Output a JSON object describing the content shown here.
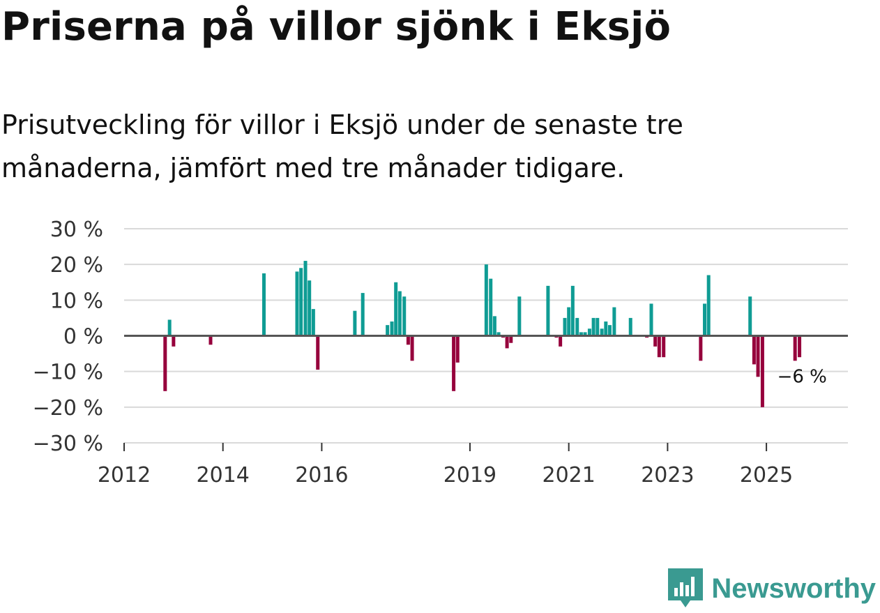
{
  "title": "Priserna på villor sjönk i Eksjö",
  "subtitle": "Prisutveckling för villor i Eksjö under de senaste tre månaderna, jämfört med tre månader tidigare.",
  "brand": "Newsworthy",
  "colors": {
    "positive": "#0f9c94",
    "negative": "#96003c",
    "grid": "#d9d9d9",
    "zero": "#555555",
    "logo": "#3a9a91"
  },
  "chart_data": {
    "type": "bar",
    "title": "Priserna på villor sjönk i Eksjö",
    "xlabel": "",
    "ylabel": "",
    "ylim": [
      -30,
      30
    ],
    "xlim": [
      2012.0,
      2026.65
    ],
    "yticks": [
      30,
      20,
      10,
      0,
      -10,
      -20,
      -30
    ],
    "ytick_labels": [
      "30 %",
      "20 %",
      "10 %",
      "0 %",
      "−10 %",
      "−20 %",
      "−30 %"
    ],
    "xticks": [
      2012,
      2014,
      2016,
      2019,
      2021,
      2023,
      2025
    ],
    "xtick_labels": [
      "2012",
      "2014",
      "2016",
      "2019",
      "2021",
      "2023",
      "2025"
    ],
    "annotation": {
      "text": "−6 %",
      "x": 2025.67,
      "y": -6
    },
    "x": [
      2012.83,
      2012.92,
      2013.0,
      2013.75,
      2014.83,
      2015.5,
      2015.58,
      2015.67,
      2015.75,
      2015.83,
      2015.92,
      2016.67,
      2016.83,
      2017.33,
      2017.42,
      2017.5,
      2017.58,
      2017.67,
      2017.75,
      2017.83,
      2018.67,
      2018.75,
      2019.33,
      2019.42,
      2019.5,
      2019.58,
      2019.67,
      2019.75,
      2019.83,
      2020.0,
      2020.58,
      2020.75,
      2020.83,
      2020.92,
      2021.0,
      2021.08,
      2021.17,
      2021.25,
      2021.33,
      2021.42,
      2021.5,
      2021.58,
      2021.67,
      2021.75,
      2021.83,
      2021.92,
      2022.25,
      2022.58,
      2022.67,
      2022.75,
      2022.83,
      2022.92,
      2023.67,
      2023.75,
      2023.83,
      2024.67,
      2024.75,
      2024.83,
      2024.92,
      2025.58,
      2025.67
    ],
    "values": [
      -15.5,
      4.5,
      -3,
      -2.5,
      17.5,
      18,
      19,
      21,
      15.5,
      7.5,
      -9.5,
      7,
      12,
      3,
      4,
      15,
      12.5,
      11,
      -2.5,
      -7,
      -15.5,
      -7.5,
      20,
      16,
      5.5,
      1,
      -0.5,
      -3.5,
      -2,
      11,
      14,
      -0.5,
      -3,
      5,
      8,
      14,
      5,
      1,
      1,
      2,
      5,
      5,
      2,
      4,
      3,
      8,
      5,
      -0.5,
      9,
      -3,
      -6,
      -6,
      -7,
      9,
      17,
      11,
      -8,
      -11.5,
      -20,
      -7,
      -6
    ]
  }
}
